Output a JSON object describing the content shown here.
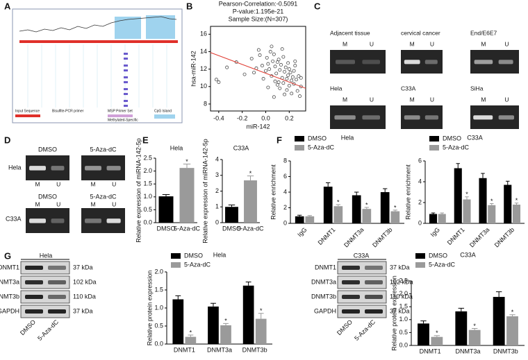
{
  "panel_labels": [
    "A",
    "B",
    "C",
    "D",
    "E",
    "F",
    "G"
  ],
  "panel_a": {
    "labels": [
      "Input Sequence",
      "Bisulfite-PCR primer",
      "MSP Primer Set",
      "CpG Island",
      "Methylated-Specific"
    ]
  },
  "panel_c": {
    "gels": [
      {
        "label": "Adjacent tissue",
        "lanes": [
          "M",
          "U"
        ]
      },
      {
        "label": "cervical cancer",
        "lanes": [
          "M",
          "U"
        ]
      },
      {
        "label": "End/E6E7",
        "lanes": [
          "M",
          "U"
        ]
      },
      {
        "label": "Hela",
        "lanes": [
          "M",
          "U"
        ]
      },
      {
        "label": "C33A",
        "lanes": [
          "M",
          "U"
        ]
      },
      {
        "label": "SiHa",
        "lanes": [
          "M",
          "U"
        ]
      }
    ]
  },
  "panel_d": {
    "rows": [
      "Hela",
      "C33A"
    ],
    "gels": [
      {
        "label": "DMSO",
        "lanes": [
          "M",
          "U"
        ]
      },
      {
        "label": "5-Aza-dC",
        "lanes": [
          "M",
          "U"
        ]
      },
      {
        "label": "DMSO",
        "lanes": [
          "M",
          "U"
        ]
      },
      {
        "label": "5-Aza-dC",
        "lanes": [
          "M",
          "U"
        ]
      }
    ]
  },
  "panel_g": {
    "blots": [
      {
        "title": "Hela",
        "proteins": [
          "DNMT1",
          "DNMT3a",
          "DNMT3b",
          "GAPDH"
        ],
        "sizes": [
          "37 kDa",
          "102 kDa",
          "110 kDa",
          "37 kDa"
        ],
        "lanes": [
          "DMSO",
          "5-Aza-dC"
        ]
      },
      {
        "title": "C33A",
        "proteins": [
          "DNMT1",
          "DNMT3a",
          "DNMT3b",
          "GAPDH"
        ],
        "sizes": [
          "37 kDa",
          "102 kDa",
          "110 kDa",
          "37 kDa"
        ],
        "lanes": [
          "DMSO",
          "5-Aza-dC"
        ]
      }
    ]
  },
  "chart_data": [
    {
      "type": "scatter",
      "title_lines": [
        "Pearson-Correlation:-0.5091",
        "P-value:1.195e-21",
        "Sample Size:(N=307)"
      ],
      "x_label": "miR-142",
      "y_label": "hsa-miR-142",
      "xlim": [
        -0.47,
        0.34
      ],
      "xticks": [
        -0.4,
        -0.2,
        {
          "value": 0,
          "label": "0.0"
        },
        0.2
      ],
      "ylim": [
        7.2,
        16.9
      ],
      "yticks": [
        8,
        10,
        12,
        14,
        16
      ],
      "x": [
        -0.42,
        -0.4,
        -0.33,
        -0.25,
        -0.18,
        -0.12,
        -0.1,
        -0.08,
        -0.05,
        -0.03,
        -0.02,
        0.0,
        0.01,
        0.02,
        0.03,
        0.04,
        0.05,
        0.06,
        0.07,
        0.08,
        0.08,
        0.09,
        0.1,
        0.1,
        0.11,
        0.12,
        0.12,
        0.13,
        0.14,
        0.15,
        0.15,
        0.16,
        0.17,
        0.18,
        0.18,
        0.19,
        0.2,
        0.2,
        0.21,
        0.22,
        0.22,
        0.23,
        0.24,
        0.25,
        0.26,
        0.27,
        0.28,
        0.29,
        0.3,
        0.05,
        -0.06,
        0.02,
        0.14,
        0.19,
        0.24,
        0.11,
        0.07,
        0.16,
        0.25,
        0.3
      ],
      "values": [
        10.8,
        10.5,
        12.2,
        12.8,
        11.4,
        13.2,
        11.6,
        12.1,
        13.6,
        12.4,
        10.9,
        11.8,
        13.3,
        12.6,
        12.0,
        14.0,
        11.2,
        12.9,
        13.7,
        10.6,
        12.3,
        11.5,
        12.8,
        10.2,
        13.1,
        11.9,
        9.8,
        12.5,
        11.0,
        13.4,
        10.4,
        11.7,
        12.2,
        9.6,
        10.9,
        11.3,
        12.0,
        10.1,
        11.6,
        10.7,
        9.2,
        11.1,
        10.3,
        12.4,
        10.8,
        9.5,
        11.2,
        8.9,
        10.0,
        14.6,
        14.2,
        9.9,
        14.3,
        12.7,
        11.8,
        10.5,
        8.8,
        9.1,
        12.9,
        11.0
      ],
      "color": "#333333",
      "fit": {
        "x": [
          -0.47,
          0.34
        ],
        "y": [
          13.9,
          9.8
        ],
        "color": "#e03a30"
      }
    },
    {
      "type": "bar",
      "title": "Hela",
      "y_label": "Relative expression of miRNA-142-5p",
      "categories": [
        "DMSO",
        "5-Aza-dC"
      ],
      "values": [
        1.02,
        2.12
      ],
      "errors": [
        0.07,
        0.15
      ],
      "marks": [
        null,
        "*"
      ],
      "colors": [
        "#000000",
        "#9a9a9a"
      ],
      "ylim": [
        0,
        2.5
      ],
      "yticks": [
        {
          "value": 0,
          "label": "0.0"
        },
        0.5,
        {
          "value": 1,
          "label": "1.0"
        },
        1.5,
        {
          "value": 2,
          "label": "2.0"
        },
        2.5
      ]
    },
    {
      "type": "bar",
      "title": "C33A",
      "y_label": "Relative expression of miRNA-142-5p",
      "categories": [
        "DMSO",
        "5-Aza-dC"
      ],
      "values": [
        1.0,
        2.68
      ],
      "errors": [
        0.12,
        0.28
      ],
      "marks": [
        null,
        "*"
      ],
      "colors": [
        "#000000",
        "#9a9a9a"
      ],
      "ylim": [
        0,
        4
      ],
      "yticks": [
        0,
        1,
        2,
        3,
        4
      ]
    },
    {
      "type": "grouped_bar",
      "title": "Hela",
      "y_label": "Relative enrichment",
      "categories": [
        "IgG",
        "DNMT1",
        "DNMT3a",
        "DNMT3b"
      ],
      "series": [
        {
          "name": "DMSO",
          "color": "#000000",
          "values": [
            0.9,
            4.7,
            3.6,
            4.0
          ],
          "errors": [
            0.15,
            0.5,
            0.4,
            0.45
          ],
          "marks": [
            null,
            null,
            null,
            null
          ]
        },
        {
          "name": "5-Aza-dC",
          "color": "#9a9a9a",
          "values": [
            0.9,
            2.2,
            1.85,
            1.55
          ],
          "errors": [
            0.1,
            0.2,
            0.2,
            0.15
          ],
          "marks": [
            null,
            "*",
            "*",
            "*"
          ]
        }
      ],
      "legend": "upper left",
      "ylim": [
        0,
        8
      ],
      "yticks": [
        0,
        2,
        4,
        6,
        8
      ]
    },
    {
      "type": "grouped_bar",
      "title": "C33A",
      "y_label": "Relative enrichment",
      "categories": [
        "IgG",
        "DNMT1",
        "DNMT3a",
        "DNMT3b"
      ],
      "series": [
        {
          "name": "DMSO",
          "color": "#000000",
          "values": [
            0.9,
            5.3,
            4.35,
            3.7
          ],
          "errors": [
            0.1,
            0.45,
            0.45,
            0.35
          ],
          "marks": [
            null,
            null,
            null,
            null
          ]
        },
        {
          "name": "5-Aza-dC",
          "color": "#9a9a9a",
          "values": [
            0.9,
            2.3,
            1.75,
            1.8
          ],
          "errors": [
            0.1,
            0.25,
            0.15,
            0.15
          ],
          "marks": [
            null,
            "*",
            "*",
            "*"
          ]
        }
      ],
      "legend": "upper left",
      "ylim": [
        0,
        6
      ],
      "yticks": [
        0,
        2,
        4,
        6
      ]
    },
    {
      "type": "grouped_bar",
      "title": "Hela",
      "y_label": "Relative protein expression",
      "categories": [
        "DNMT1",
        "DNMT3a",
        "DNMT3b"
      ],
      "series": [
        {
          "name": "DMSO",
          "color": "#000000",
          "values": [
            1.24,
            1.04,
            1.62
          ],
          "errors": [
            0.1,
            0.09,
            0.1
          ],
          "marks": [
            null,
            null,
            null
          ]
        },
        {
          "name": "5-Aza-dC",
          "color": "#9a9a9a",
          "values": [
            0.2,
            0.52,
            0.7
          ],
          "errors": [
            0.05,
            0.05,
            0.15
          ],
          "marks": [
            "*",
            "*",
            "*"
          ]
        }
      ],
      "legend": "upper left",
      "ylim": [
        0,
        2.0
      ],
      "yticks": [
        {
          "value": 0,
          "label": "0.0"
        },
        0.5,
        {
          "value": 1,
          "label": "1.0"
        },
        1.5,
        {
          "value": 2,
          "label": "2.0"
        }
      ]
    },
    {
      "type": "grouped_bar",
      "title": "C33A",
      "y_label": "Relative protein expression",
      "categories": [
        "DNMT1",
        "DNMT3a",
        "DNMT3b"
      ],
      "series": [
        {
          "name": "DMSO",
          "color": "#000000",
          "values": [
            0.85,
            1.32,
            1.88
          ],
          "errors": [
            0.1,
            0.12,
            0.2
          ],
          "marks": [
            null,
            null,
            null
          ]
        },
        {
          "name": "5-Aza-dC",
          "color": "#9a9a9a",
          "values": [
            0.33,
            0.6,
            1.13
          ],
          "errors": [
            0.05,
            0.06,
            0.06
          ],
          "marks": [
            "*",
            "*",
            "*"
          ]
        }
      ],
      "legend": "upper left",
      "ylim": [
        0,
        2.5
      ],
      "yticks": [
        {
          "value": 0,
          "label": "0.0"
        },
        0.5,
        {
          "value": 1,
          "label": "1.0"
        },
        1.5,
        {
          "value": 2,
          "label": "2.0"
        },
        2.5
      ]
    }
  ]
}
